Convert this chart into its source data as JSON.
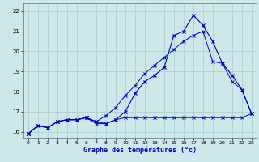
{
  "xlabel": "Graphe des températures (°c)",
  "bg_color": "#cce8e8",
  "grid_color": "#aacccc",
  "line_color": "#0000bb",
  "xlim": [
    -0.5,
    23.5
  ],
  "ylim": [
    15.7,
    22.4
  ],
  "xticks": [
    0,
    1,
    2,
    3,
    4,
    5,
    6,
    7,
    8,
    9,
    10,
    11,
    12,
    13,
    14,
    15,
    16,
    17,
    18,
    19,
    20,
    21,
    22,
    23
  ],
  "yticks": [
    16,
    17,
    18,
    19,
    20,
    21,
    22
  ],
  "hours": [
    0,
    1,
    2,
    3,
    4,
    5,
    6,
    7,
    8,
    9,
    10,
    11,
    12,
    13,
    14,
    15,
    16,
    17,
    18,
    19,
    20,
    21,
    22,
    23
  ],
  "line1": [
    15.9,
    16.3,
    16.2,
    16.5,
    16.6,
    16.6,
    16.7,
    16.5,
    16.4,
    16.6,
    17.0,
    17.9,
    18.5,
    18.8,
    19.2,
    20.8,
    21.0,
    21.8,
    21.3,
    20.5,
    19.4,
    18.8,
    18.1,
    16.9
  ],
  "line2": [
    15.9,
    16.3,
    16.2,
    16.5,
    16.6,
    16.6,
    16.7,
    16.4,
    16.4,
    16.6,
    16.7,
    16.7,
    16.7,
    16.7,
    16.7,
    16.7,
    16.7,
    16.7,
    16.7,
    16.7,
    16.7,
    16.7,
    16.7,
    16.9
  ],
  "line3": [
    15.9,
    16.3,
    16.2,
    16.5,
    16.6,
    16.6,
    16.7,
    16.5,
    16.8,
    17.2,
    17.8,
    18.3,
    18.9,
    19.3,
    19.7,
    20.1,
    20.5,
    20.8,
    21.0,
    19.5,
    19.4,
    18.5,
    18.1,
    16.9
  ]
}
